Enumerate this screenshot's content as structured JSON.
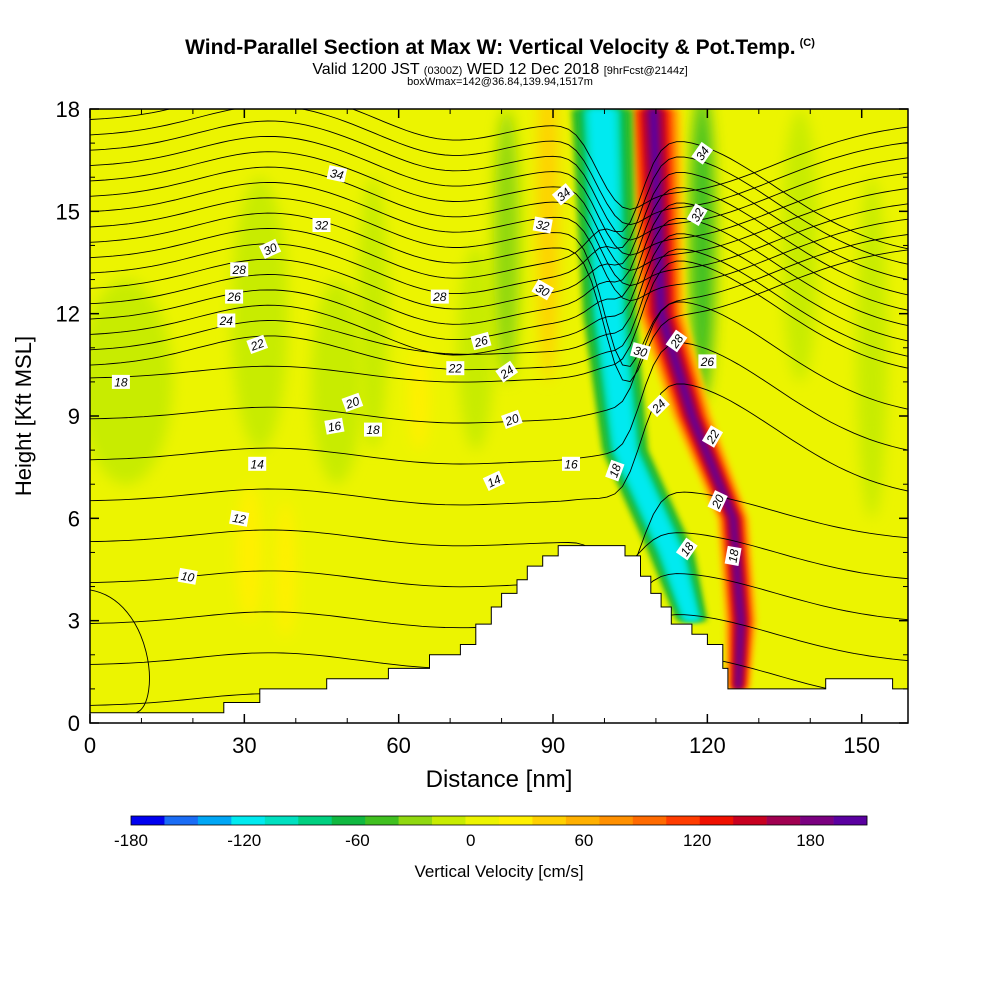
{
  "header": {
    "title": "Wind-Parallel Section at Max W: Vertical Velocity & Pot.Temp.",
    "title_mark": "(C)",
    "subtitle_valid": "Valid 1200 JST",
    "subtitle_utc": "(0300Z)",
    "subtitle_date": "WED 12 Dec 2018",
    "subtitle_fcst": "[9hrFcst@2144z]",
    "subsub": "boxWmax=142@36.84,139.94,1517m"
  },
  "chart_data": {
    "type": "contour-section",
    "xlabel": "Distance [nm]",
    "ylabel": "Height [Kft MSL]",
    "xlim": [
      0,
      159
    ],
    "ylim": [
      0,
      18
    ],
    "x_ticks": [
      0,
      30,
      60,
      90,
      120,
      150
    ],
    "y_ticks": [
      0,
      3,
      6,
      9,
      12,
      15,
      18
    ],
    "colorbar": {
      "label": "Vertical Velocity [cm/s]",
      "range": [
        -180,
        210
      ],
      "tick_values": [
        -180,
        -120,
        -60,
        0,
        60,
        120,
        180
      ],
      "colors": [
        "#0000f0",
        "#1a6cf5",
        "#00a6f5",
        "#00eaf0",
        "#00e0c0",
        "#00d080",
        "#10b840",
        "#40c020",
        "#90d810",
        "#c8ec00",
        "#ecf400",
        "#fff000",
        "#ffd000",
        "#ffb000",
        "#ff9000",
        "#ff6a00",
        "#ff3c00",
        "#f01000",
        "#c80020",
        "#a00050",
        "#7a0080",
        "#5a00a0"
      ]
    },
    "velocity_features": [
      {
        "x": 7,
        "y": 10,
        "w": 18,
        "h": 6,
        "value": -10
      },
      {
        "x": 33,
        "y": 12,
        "w": 11,
        "h": 8,
        "value": -20
      },
      {
        "x": 48,
        "y": 10,
        "w": 10,
        "h": 6,
        "value": -20
      },
      {
        "x": 55,
        "y": 12,
        "w": 6,
        "h": 8,
        "value": -10
      },
      {
        "x": 75,
        "y": 11,
        "w": 7,
        "h": 6,
        "value": -20
      },
      {
        "x": 81,
        "y": 14,
        "w": 5,
        "h": 8,
        "value": -25
      },
      {
        "x": 31,
        "y": 5,
        "w": 5,
        "h": 4,
        "value": 25
      },
      {
        "x": 38,
        "y": 4.5,
        "w": 4,
        "h": 4,
        "value": 25
      },
      {
        "x": 64,
        "y": 9.5,
        "w": 4,
        "h": 3,
        "value": 20
      },
      {
        "x": 89,
        "y": 15,
        "w": 4,
        "h": 10,
        "value": 40
      },
      {
        "x": 119,
        "y": 14,
        "w": 5,
        "h": 9,
        "value": -40
      },
      {
        "x": 138,
        "y": 14,
        "w": 7,
        "h": 8,
        "value": -20
      },
      {
        "x": 152,
        "y": 11,
        "w": 6,
        "h": 10,
        "value": -20
      }
    ],
    "updraft_column": [
      {
        "y": 18,
        "center": 109.5,
        "width": 7
      },
      {
        "y": 12,
        "center": 111,
        "width": 6
      },
      {
        "y": 9,
        "center": 117,
        "width": 5
      },
      {
        "y": 6,
        "center": 125,
        "width": 4
      },
      {
        "y": 3,
        "center": 126.5,
        "width": 4
      },
      {
        "y": 1,
        "center": 126,
        "width": 3
      }
    ],
    "downdraft_column": [
      {
        "y": 18,
        "center": 99.5,
        "width": 8
      },
      {
        "y": 12,
        "center": 101,
        "width": 7
      },
      {
        "y": 8,
        "center": 104,
        "width": 6
      },
      {
        "y": 5,
        "center": 113,
        "width": 6
      },
      {
        "y": 3,
        "center": 117,
        "width": 4
      }
    ],
    "terrain": [
      [
        0,
        0.3
      ],
      [
        26,
        0.3
      ],
      [
        26,
        0.6
      ],
      [
        33,
        0.6
      ],
      [
        33,
        1.0
      ],
      [
        46,
        1.0
      ],
      [
        46,
        1.3
      ],
      [
        58,
        1.3
      ],
      [
        58,
        1.6
      ],
      [
        66,
        1.6
      ],
      [
        66,
        2.0
      ],
      [
        72,
        2.0
      ],
      [
        72,
        2.3
      ],
      [
        75,
        2.3
      ],
      [
        75,
        2.9
      ],
      [
        78,
        2.9
      ],
      [
        78,
        3.4
      ],
      [
        80,
        3.4
      ],
      [
        80,
        3.8
      ],
      [
        83,
        3.8
      ],
      [
        83,
        4.2
      ],
      [
        85,
        4.2
      ],
      [
        85,
        4.6
      ],
      [
        88,
        4.6
      ],
      [
        88,
        4.9
      ],
      [
        91,
        4.9
      ],
      [
        91,
        5.2
      ],
      [
        104,
        5.2
      ],
      [
        104,
        4.9
      ],
      [
        107,
        4.9
      ],
      [
        107,
        4.3
      ],
      [
        109,
        4.3
      ],
      [
        109,
        3.8
      ],
      [
        111,
        3.8
      ],
      [
        111,
        3.4
      ],
      [
        113,
        3.4
      ],
      [
        113,
        2.9
      ],
      [
        117,
        2.9
      ],
      [
        117,
        2.6
      ],
      [
        120,
        2.6
      ],
      [
        120,
        2.3
      ],
      [
        123,
        2.3
      ],
      [
        123,
        1.6
      ],
      [
        124,
        1.6
      ],
      [
        124,
        1.0
      ],
      [
        129,
        1.0
      ],
      [
        129,
        1.0
      ],
      [
        143,
        1.0
      ],
      [
        143,
        1.3
      ],
      [
        156,
        1.3
      ],
      [
        156,
        1.0
      ],
      [
        159,
        1.0
      ]
    ],
    "theta_contours": {
      "levels": [
        10,
        11,
        12,
        13,
        14,
        15,
        16,
        17,
        18,
        19,
        20,
        21,
        22,
        23,
        24,
        25,
        26,
        27,
        28,
        29,
        30,
        31,
        32,
        33,
        34,
        35
      ],
      "labels": [
        {
          "text": "34",
          "x": 48,
          "y": 16.1,
          "angle": 12
        },
        {
          "text": "32",
          "x": 45,
          "y": 14.6,
          "angle": 0
        },
        {
          "text": "30",
          "x": 35,
          "y": 13.9,
          "angle": -25
        },
        {
          "text": "28",
          "x": 29,
          "y": 13.3,
          "angle": 0
        },
        {
          "text": "26",
          "x": 28,
          "y": 12.5,
          "angle": 0
        },
        {
          "text": "24",
          "x": 26.5,
          "y": 11.8,
          "angle": 0
        },
        {
          "text": "22",
          "x": 32.5,
          "y": 11.1,
          "angle": -20
        },
        {
          "text": "18",
          "x": 6,
          "y": 10.0,
          "angle": 0
        },
        {
          "text": "20",
          "x": 51,
          "y": 9.4,
          "angle": -20
        },
        {
          "text": "16",
          "x": 47.5,
          "y": 8.7,
          "angle": -10
        },
        {
          "text": "18",
          "x": 55,
          "y": 8.6,
          "angle": 0
        },
        {
          "text": "14",
          "x": 32.5,
          "y": 7.6,
          "angle": 0
        },
        {
          "text": "12",
          "x": 29,
          "y": 6.0,
          "angle": 10
        },
        {
          "text": "10",
          "x": 19,
          "y": 4.3,
          "angle": 10
        },
        {
          "text": "28",
          "x": 68,
          "y": 12.5,
          "angle": 0
        },
        {
          "text": "26",
          "x": 76,
          "y": 11.2,
          "angle": -15
        },
        {
          "text": "22",
          "x": 71,
          "y": 10.4,
          "angle": 0
        },
        {
          "text": "24",
          "x": 81,
          "y": 10.3,
          "angle": -35
        },
        {
          "text": "20",
          "x": 82,
          "y": 8.9,
          "angle": -20
        },
        {
          "text": "14",
          "x": 78.5,
          "y": 7.1,
          "angle": -25
        },
        {
          "text": "16",
          "x": 93.5,
          "y": 7.6,
          "angle": 0
        },
        {
          "text": "34",
          "x": 92,
          "y": 15.5,
          "angle": -40
        },
        {
          "text": "32",
          "x": 88,
          "y": 14.6,
          "angle": 10
        },
        {
          "text": "30",
          "x": 88,
          "y": 12.7,
          "angle": 30
        },
        {
          "text": "30",
          "x": 107,
          "y": 10.9,
          "angle": 15
        },
        {
          "text": "28",
          "x": 114,
          "y": 11.2,
          "angle": -55
        },
        {
          "text": "18",
          "x": 102,
          "y": 7.4,
          "angle": -70
        },
        {
          "text": "24",
          "x": 110.5,
          "y": 9.3,
          "angle": -45
        },
        {
          "text": "26",
          "x": 120,
          "y": 10.6,
          "angle": 0
        },
        {
          "text": "34",
          "x": 119,
          "y": 16.7,
          "angle": -55
        },
        {
          "text": "32",
          "x": 118,
          "y": 14.9,
          "angle": -60
        },
        {
          "text": "22",
          "x": 121,
          "y": 8.4,
          "angle": -60
        },
        {
          "text": "20",
          "x": 122,
          "y": 6.5,
          "angle": -65
        },
        {
          "text": "18",
          "x": 116,
          "y": 5.1,
          "angle": -55
        },
        {
          "text": "18",
          "x": 125,
          "y": 4.9,
          "angle": -80
        }
      ]
    }
  }
}
